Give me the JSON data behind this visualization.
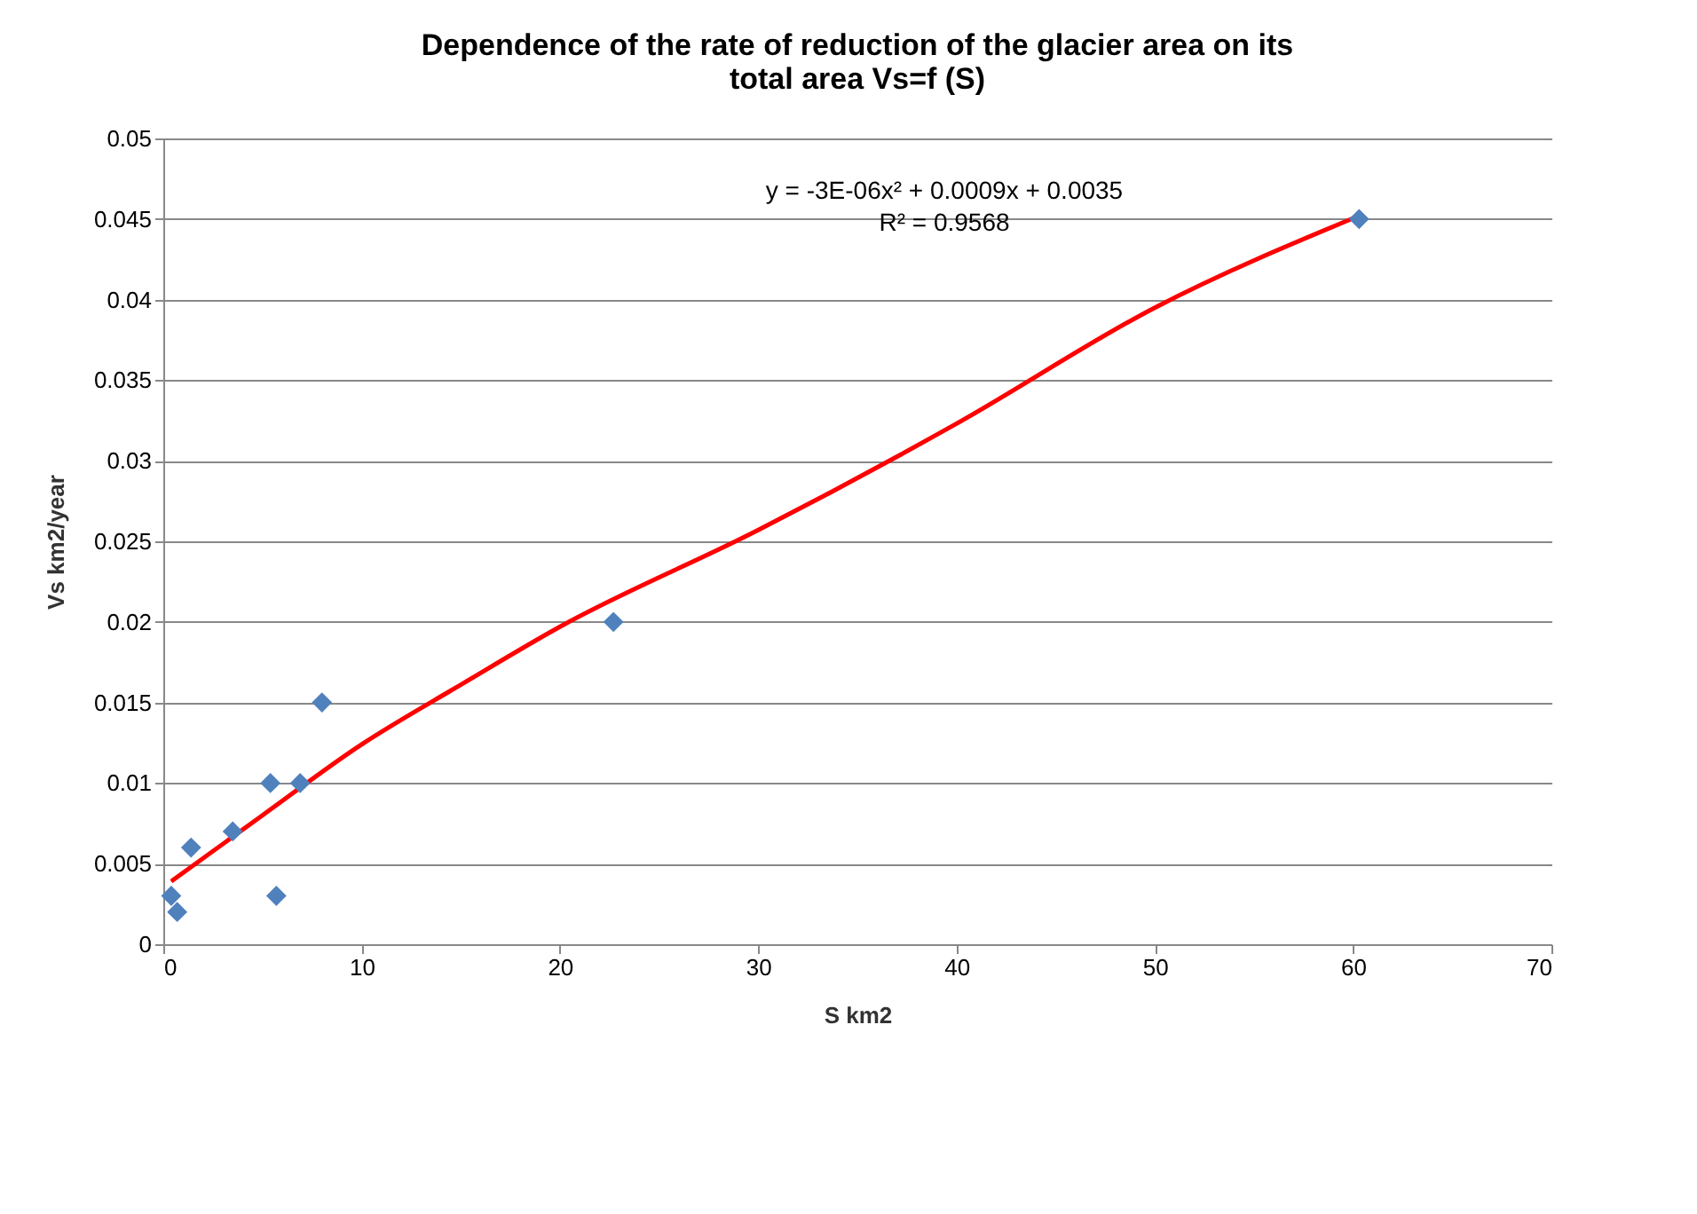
{
  "chart_data": {
    "type": "scatter",
    "title": "Dependence of the rate of reduction of the glacier area on its total area Vs=f (S)",
    "xlabel": "S km2",
    "ylabel": "Vs km2/year",
    "series": [
      {
        "color": "#4f81bd",
        "marker": "diamond",
        "x": [
          0.4,
          0.7,
          1.4,
          3.5,
          5.4,
          5.7,
          6.9,
          8.0,
          22.7,
          60.3
        ],
        "values": [
          0.003,
          0.002,
          0.006,
          0.007,
          0.01,
          0.003,
          0.01,
          0.015,
          0.02,
          0.045
        ]
      },
      {
        "type": "line",
        "color": "#ff0000",
        "x": [
          0.4,
          5,
          10,
          15,
          20,
          30,
          40,
          50,
          60.3
        ],
        "values": [
          0.0039,
          0.008,
          0.0124,
          0.0161,
          0.0197,
          0.0257,
          0.0323,
          0.0395,
          0.0452
        ]
      }
    ],
    "annotations": [
      "y = -3E-06x² + 0.0009x + 0.0035",
      "R² = 0.9568"
    ],
    "xlim": [
      0,
      70
    ],
    "xticks": [
      0,
      10,
      20,
      30,
      40,
      50,
      60,
      70
    ],
    "ylim": [
      0,
      0.05
    ],
    "yticks": [
      0,
      0.005,
      0.01,
      0.015,
      0.02,
      0.025,
      0.03,
      0.035,
      0.04,
      0.045,
      0.05
    ],
    "grid": "y"
  }
}
